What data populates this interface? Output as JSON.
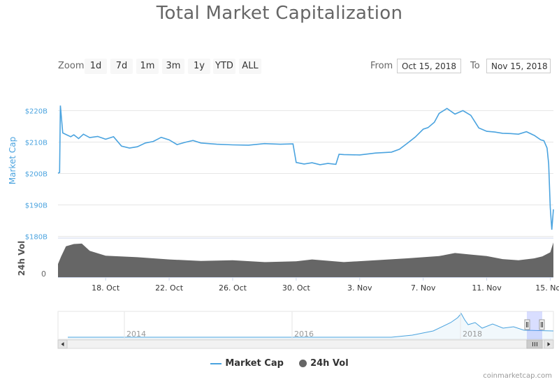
{
  "chart_data": {
    "type": "line",
    "title": "Total Market Capitalization",
    "zoom": {
      "label": "Zoom",
      "buttons": [
        "1d",
        "7d",
        "1m",
        "3m",
        "1y",
        "YTD",
        "ALL"
      ]
    },
    "range": {
      "from_label": "From",
      "from": "Oct 15, 2018",
      "to_label": "To",
      "to": "Nov 15, 2018"
    },
    "ylabel": "Market Cap",
    "ylabel_volume": "24h Vol",
    "ylim": [
      180,
      220
    ],
    "y_ticks": [
      "$220B",
      "$210B",
      "$200B",
      "$190B",
      "$180B"
    ],
    "volume_ticks": [
      "0"
    ],
    "x_ticks": [
      "18. Oct",
      "22. Oct",
      "26. Oct",
      "30. Oct",
      "3. Nov",
      "7. Nov",
      "11. Nov",
      "15. Nov"
    ],
    "navigator_ticks": [
      "2014",
      "2016",
      "2018"
    ],
    "grid": true,
    "legend_position": "bottom",
    "series": [
      {
        "name": "Market Cap",
        "unit": "billion USD",
        "color": "#4aa3df",
        "x": [
          15.0,
          15.1,
          15.15,
          15.3,
          15.5,
          15.8,
          16.0,
          16.3,
          16.6,
          17.0,
          17.5,
          18.0,
          18.5,
          19.0,
          19.5,
          20.0,
          20.5,
          21.0,
          21.5,
          22.0,
          22.5,
          23.0,
          23.5,
          24.0,
          25.0,
          26.0,
          27.0,
          28.0,
          29.0,
          29.8,
          30.0,
          30.5,
          31.0,
          31.5,
          32.0,
          32.5,
          32.7,
          33.0,
          34.0,
          35.0,
          36.0,
          36.5,
          37.0,
          37.5,
          38.0,
          38.3,
          38.7,
          39.0,
          39.5,
          40.0,
          40.5,
          41.0,
          41.5,
          42.0,
          42.5,
          43.0,
          43.5,
          44.0,
          44.5,
          45.0,
          45.4,
          45.6,
          45.8,
          45.9,
          46.0,
          46.1,
          46.2
        ],
        "values": [
          200.0,
          200.2,
          221.5,
          212.8,
          212.3,
          211.6,
          212.2,
          211.0,
          212.4,
          211.3,
          211.7,
          210.8,
          211.6,
          208.6,
          208.0,
          208.4,
          209.6,
          210.1,
          211.4,
          210.6,
          209.1,
          209.8,
          210.4,
          209.6,
          209.2,
          209.0,
          208.9,
          209.4,
          209.2,
          209.3,
          203.4,
          202.9,
          203.3,
          202.7,
          203.1,
          202.8,
          206.0,
          205.9,
          205.8,
          206.4,
          206.7,
          207.6,
          209.5,
          211.5,
          214.0,
          214.5,
          216.2,
          219.0,
          220.6,
          218.8,
          219.9,
          218.4,
          214.4,
          213.3,
          213.1,
          212.7,
          212.6,
          212.4,
          213.2,
          212.0,
          210.6,
          210.3,
          208.0,
          203.0,
          189.0,
          182.0,
          188.5
        ]
      },
      {
        "name": "24h Vol",
        "color": "#666666",
        "x": [
          15.0,
          15.2,
          15.5,
          16.0,
          16.5,
          17.0,
          18.0,
          20.0,
          22.0,
          24.0,
          26.0,
          28.0,
          30.0,
          31.0,
          33.0,
          35.0,
          37.0,
          39.0,
          40.0,
          41.0,
          42.0,
          43.0,
          44.0,
          45.0,
          45.5,
          46.0,
          46.2
        ],
        "values": [
          0.35,
          0.55,
          0.82,
          0.88,
          0.89,
          0.7,
          0.57,
          0.53,
          0.47,
          0.43,
          0.45,
          0.4,
          0.42,
          0.47,
          0.4,
          0.45,
          0.5,
          0.56,
          0.64,
          0.6,
          0.56,
          0.48,
          0.45,
          0.5,
          0.55,
          0.66,
          0.92
        ]
      }
    ]
  },
  "credit": "coinmarketcap.com"
}
